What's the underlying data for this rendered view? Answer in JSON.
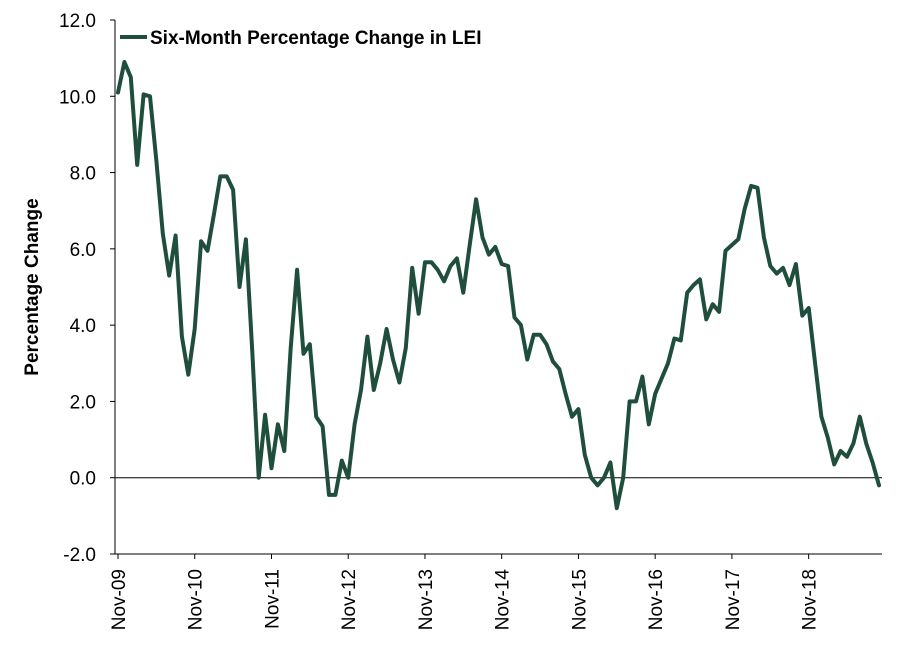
{
  "chart_data": {
    "type": "line",
    "ylabel": "Percentage Change",
    "ylim": [
      -2.0,
      12.0
    ],
    "yticks": [
      "-2.0",
      "0.0",
      "2.0",
      "4.0",
      "6.0",
      "8.0",
      "10.0",
      "12.0"
    ],
    "xtick_labels": [
      "Nov-09",
      "Nov-10",
      "Nov-11",
      "Nov-12",
      "Nov-13",
      "Nov-14",
      "Nov-15",
      "Nov-16",
      "Nov-17",
      "Nov-18"
    ],
    "x_start": "Nov-09",
    "x_end": "Jul-19",
    "legend_position": "top-left",
    "grid": false,
    "colors": {
      "series": "#1f4f3c",
      "axis": "#000000"
    },
    "series": [
      {
        "name": "Six-Month Percentage Change in LEI",
        "values": [
          10.1,
          10.9,
          10.5,
          8.2,
          10.05,
          10.0,
          8.3,
          6.4,
          5.3,
          6.35,
          3.7,
          2.7,
          3.9,
          6.2,
          5.95,
          6.9,
          7.9,
          7.9,
          7.55,
          5.0,
          6.25,
          3.3,
          0.0,
          1.65,
          0.25,
          1.4,
          0.7,
          3.4,
          5.45,
          3.25,
          3.5,
          1.6,
          1.35,
          -0.45,
          -0.45,
          0.45,
          0.0,
          1.4,
          2.3,
          3.7,
          2.3,
          3.0,
          3.9,
          3.1,
          2.5,
          3.4,
          5.5,
          4.3,
          5.65,
          5.65,
          5.45,
          5.15,
          5.55,
          5.75,
          4.85,
          6.1,
          7.3,
          6.3,
          5.85,
          6.05,
          5.6,
          5.55,
          4.2,
          4.0,
          3.1,
          3.75,
          3.75,
          3.5,
          3.05,
          2.85,
          2.2,
          1.6,
          1.8,
          0.6,
          0.0,
          -0.2,
          0.0,
          0.4,
          -0.8,
          0.0,
          2.0,
          2.0,
          2.65,
          1.4,
          2.2,
          2.6,
          3.0,
          3.65,
          3.6,
          4.85,
          5.05,
          5.2,
          4.15,
          4.55,
          4.35,
          5.95,
          6.1,
          6.25,
          7.05,
          7.65,
          7.6,
          6.3,
          5.55,
          5.35,
          5.5,
          5.05,
          5.6,
          4.25,
          4.45,
          3.0,
          1.6,
          1.05,
          0.35,
          0.7,
          0.55,
          0.9,
          1.6,
          0.9,
          0.4,
          -0.2
        ]
      }
    ]
  }
}
